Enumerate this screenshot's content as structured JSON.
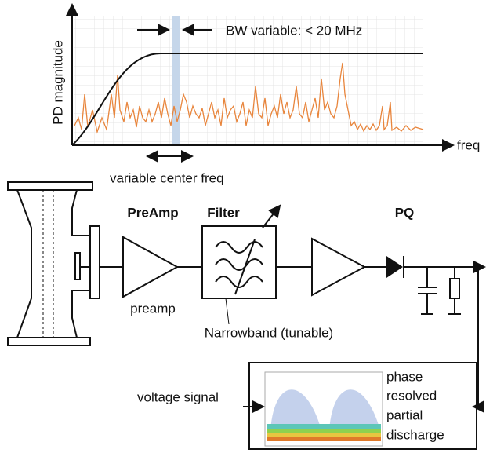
{
  "spectrum_plot": {
    "y_axis_label": "PD magnitude",
    "x_axis_label": "freq",
    "bandwidth_note": "BW variable: < 20 MHz",
    "center_freq_note": "variable center freq"
  },
  "blocks": [
    {
      "title": "PreAmp",
      "label": "preamp"
    },
    {
      "title": "Filter",
      "label": "Narrowband (tunable)"
    },
    {
      "title": "PQ"
    }
  ],
  "prpd": {
    "input_label": "voltage signal",
    "caption_lines": [
      "phase",
      "resolved",
      "partial",
      "discharge"
    ]
  }
}
